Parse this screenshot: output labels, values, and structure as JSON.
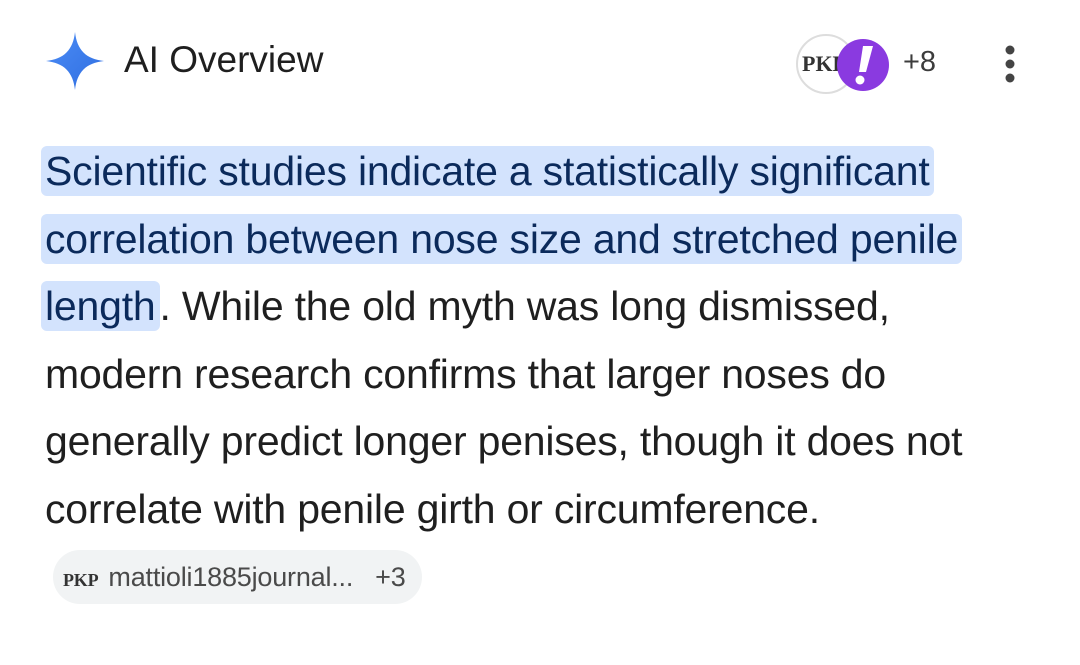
{
  "header": {
    "title": "AI Overview",
    "source_icon": "PKP",
    "source_count": "+8"
  },
  "body": {
    "highlight": "Scientific studies indicate a statistically significant correlation between nose size and stretched penile length",
    "text": ". While the old myth was long dismissed, modern research confirms that larger noses do generally predict longer penises, though it does not correlate with penile girth or circumference."
  },
  "citation": {
    "icon": "PKP",
    "source": "mattioli1885journal...",
    "count": "+3"
  }
}
